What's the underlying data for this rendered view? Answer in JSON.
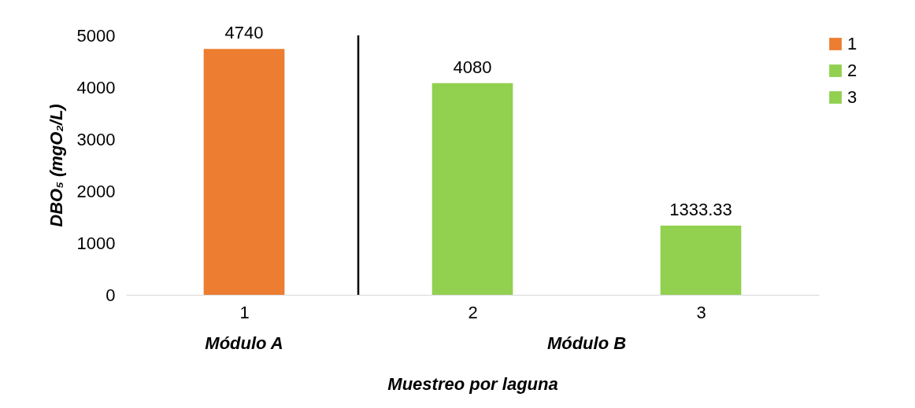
{
  "chart_data": {
    "type": "bar",
    "x": [
      1,
      2,
      3
    ],
    "xlim": [
      0.5,
      3.5
    ],
    "xticks": [
      1,
      2,
      3
    ],
    "ylim": [
      0,
      5000
    ],
    "yticks": [
      0,
      1000,
      2000,
      3000,
      4000,
      5000
    ],
    "xlabel": "Muestreo por laguna",
    "ylabel": "DBO₅ (mgO₂/L)",
    "series": [
      {
        "name": "1",
        "color": "#ed7d31",
        "values": [
          4740,
          null,
          null
        ]
      },
      {
        "name": "2",
        "color": "#92d050",
        "values": [
          null,
          4080,
          null
        ]
      },
      {
        "name": "3",
        "color": "#92d050",
        "values": [
          null,
          null,
          1333.33
        ]
      }
    ],
    "data_labels": true,
    "legend": "right",
    "ref_lines": [
      {
        "axis": "x",
        "value": 1.5,
        "color": "#000000"
      }
    ],
    "annotations": [
      "Módulo A",
      "Módulo B"
    ]
  }
}
